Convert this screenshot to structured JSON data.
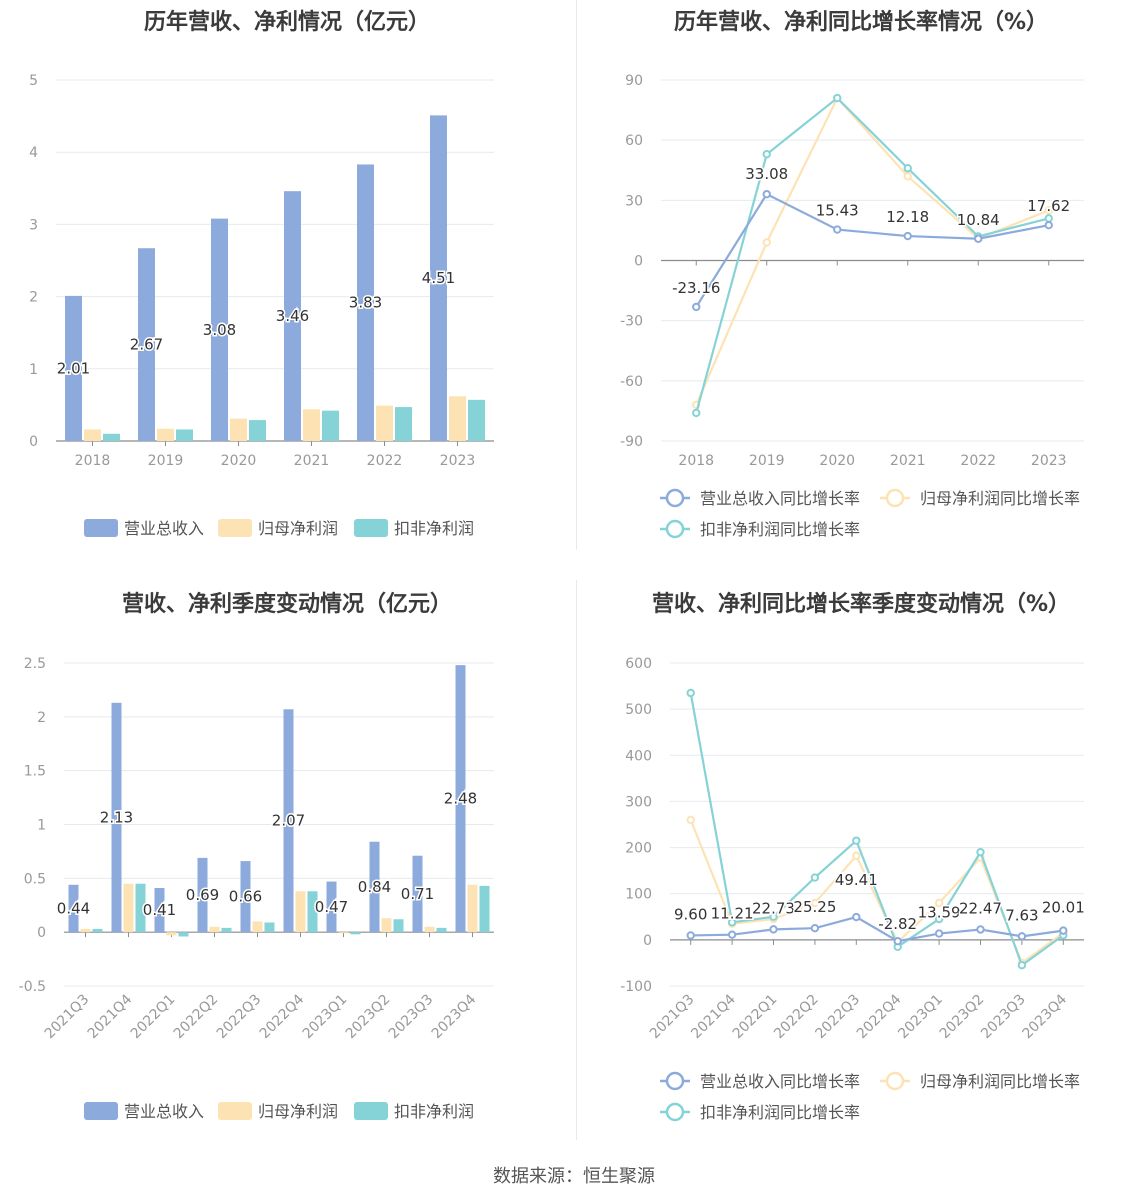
{
  "source": "数据来源：恒生聚源",
  "colors": {
    "revenue": "#8caadb",
    "net": "#fde3b4",
    "deducted": "#85d3d6",
    "grid": "#e6e9f0",
    "axis": "#999999",
    "label": "#333333"
  },
  "chart_data": [
    {
      "type": "bar",
      "title": "历年营收、净利情况（亿元）",
      "categories": [
        "2018",
        "2019",
        "2020",
        "2021",
        "2022",
        "2023"
      ],
      "series": [
        {
          "name": "营业总收入",
          "values": [
            2.01,
            2.67,
            3.08,
            3.46,
            3.83,
            4.51
          ],
          "labels": [
            "2.01",
            "2.67",
            "3.08",
            "3.46",
            "3.83",
            "4.51"
          ]
        },
        {
          "name": "归母净利润",
          "values": [
            0.16,
            0.17,
            0.31,
            0.44,
            0.49,
            0.62
          ]
        },
        {
          "name": "扣非净利润",
          "values": [
            0.1,
            0.16,
            0.29,
            0.42,
            0.47,
            0.57
          ]
        }
      ],
      "ylim": [
        0,
        5
      ],
      "yticks": [
        0,
        1,
        2,
        3,
        4,
        5
      ],
      "ytick_labels": [
        "0",
        "1",
        "2",
        "3",
        "4",
        "5"
      ],
      "legend": "bottom-center"
    },
    {
      "type": "line",
      "title": "历年营收、净利同比增长率情况（%）",
      "categories": [
        "2018",
        "2019",
        "2020",
        "2021",
        "2022",
        "2023"
      ],
      "series": [
        {
          "name": "营业总收入同比增长率",
          "values": [
            -23.16,
            33.08,
            15.43,
            12.18,
            10.84,
            17.62
          ],
          "labels": [
            "-23.16",
            "33.08",
            "15.43",
            "12.18",
            "10.84",
            "17.62"
          ]
        },
        {
          "name": "归母净利润同比增长率",
          "values": [
            -72,
            9,
            81,
            42,
            11,
            25
          ]
        },
        {
          "name": "扣非净利润同比增长率",
          "values": [
            -76,
            53,
            81,
            46,
            12,
            21
          ]
        }
      ],
      "ylim": [
        -90,
        90
      ],
      "yticks": [
        -90,
        -60,
        -30,
        0,
        30,
        60,
        90
      ],
      "ytick_labels": [
        "-90",
        "-60",
        "-30",
        "0",
        "30",
        "60",
        "90"
      ],
      "legend": "bottom-center"
    },
    {
      "type": "bar",
      "title": "营收、净利季度变动情况（亿元）",
      "categories": [
        "2021Q3",
        "2021Q4",
        "2022Q1",
        "2022Q2",
        "2022Q3",
        "2022Q4",
        "2023Q1",
        "2023Q2",
        "2023Q3",
        "2023Q4"
      ],
      "series": [
        {
          "name": "营业总收入",
          "values": [
            0.44,
            2.13,
            0.41,
            0.69,
            0.66,
            2.07,
            0.47,
            0.84,
            0.71,
            2.48
          ],
          "labels": [
            "0.44",
            "2.13",
            "0.41",
            "0.69",
            "0.66",
            "2.07",
            "0.47",
            "0.84",
            "0.71",
            "2.48"
          ]
        },
        {
          "name": "归母净利润",
          "values": [
            0.03,
            0.45,
            -0.03,
            0.05,
            0.1,
            0.38,
            -0.01,
            0.13,
            0.05,
            0.44
          ]
        },
        {
          "name": "扣非净利润",
          "values": [
            0.03,
            0.45,
            -0.04,
            0.04,
            0.09,
            0.38,
            -0.02,
            0.12,
            0.04,
            0.43
          ]
        }
      ],
      "ylim": [
        -0.5,
        2.5
      ],
      "yticks": [
        -0.5,
        0,
        0.5,
        1,
        1.5,
        2,
        2.5
      ],
      "ytick_labels": [
        "-0.5",
        "0",
        "0.5",
        "1",
        "1.5",
        "2",
        "2.5"
      ],
      "legend": "bottom-center"
    },
    {
      "type": "line",
      "title": "营收、净利同比增长率季度变动情况（%）",
      "categories": [
        "2021Q3",
        "2021Q4",
        "2022Q1",
        "2022Q2",
        "2022Q3",
        "2022Q4",
        "2023Q1",
        "2023Q2",
        "2023Q3",
        "2023Q4"
      ],
      "series": [
        {
          "name": "营业总收入同比增长率",
          "values": [
            9.6,
            11.21,
            22.73,
            25.25,
            49.41,
            -2.82,
            13.59,
            22.47,
            7.63,
            20.01
          ],
          "labels": [
            "9.60",
            "11.21",
            "22.73",
            "25.25",
            "49.41",
            "-2.82",
            "13.59",
            "22.47",
            "7.63",
            "20.01"
          ]
        },
        {
          "name": "归母净利润同比增长率",
          "values": [
            260,
            35,
            45,
            80,
            182,
            -5,
            80,
            178,
            -50,
            15
          ]
        },
        {
          "name": "扣非净利润同比增长率",
          "values": [
            535,
            38,
            50,
            135,
            215,
            -15,
            45,
            190,
            -55,
            10
          ]
        }
      ],
      "ylim": [
        -100,
        600
      ],
      "yticks": [
        -100,
        0,
        100,
        200,
        300,
        400,
        500,
        600
      ],
      "ytick_labels": [
        "-100",
        "0",
        "100",
        "200",
        "300",
        "400",
        "500",
        "600"
      ],
      "legend": "bottom-center"
    }
  ]
}
